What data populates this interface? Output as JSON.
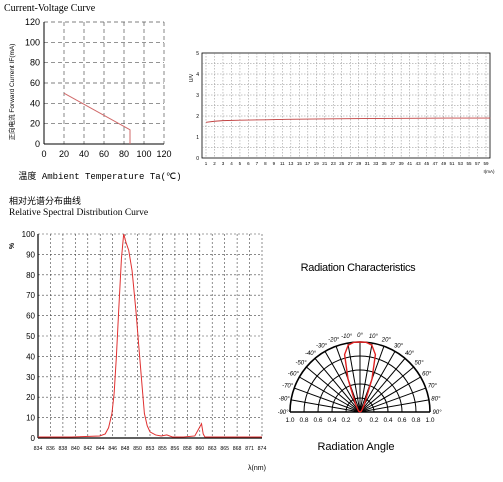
{
  "labels": {
    "cv_title": "Current-Voltage Curve",
    "spectral_cn": "相对光谱分布曲线",
    "spectral_en": "Relative Spectral Distribution Curve"
  },
  "chart_data": [
    {
      "type": "line",
      "ylabel": "正向电流 Forward Current IF(mA)",
      "xlabel": "温度 Ambient Temperature Ta(℃)",
      "xlim": [
        0,
        120
      ],
      "ylim": [
        0,
        120
      ],
      "x_ticks": [
        0,
        20,
        40,
        60,
        80,
        100,
        120
      ],
      "y_ticks": [
        0,
        20,
        40,
        60,
        80,
        100,
        120
      ],
      "grid": true,
      "series": [
        {
          "x": [
            20,
            86,
            86
          ],
          "y": [
            50,
            14,
            0
          ]
        }
      ]
    },
    {
      "type": "line",
      "ylabel": "U/V",
      "xlabel": "I(mA)",
      "xlim": [
        1,
        60
      ],
      "ylim": [
        0,
        5
      ],
      "x_ticks": [
        "1",
        "2",
        "3",
        "4",
        "5",
        "6",
        "7",
        "8",
        "9",
        "11",
        "13",
        "15",
        "17",
        "19",
        "21",
        "23",
        "25",
        "27",
        "29",
        "31",
        "33",
        "35",
        "37",
        "39",
        "41",
        "43",
        "45",
        "47",
        "49",
        "51",
        "53",
        "55",
        "57",
        "59"
      ],
      "y_ticks": [
        0,
        0.5,
        1,
        1.5,
        2,
        2.5,
        3,
        3.5,
        4,
        4.5,
        5
      ],
      "grid": true,
      "series": [
        {
          "x": [
            1,
            2,
            3,
            5,
            8,
            12,
            20,
            30,
            40,
            50,
            60
          ],
          "y": [
            1.7,
            1.75,
            1.78,
            1.8,
            1.82,
            1.84,
            1.86,
            1.88,
            1.89,
            1.9,
            1.9
          ]
        }
      ]
    },
    {
      "type": "line",
      "ylabel": "%",
      "xlabel": "λ(nm)",
      "xlim": [
        834,
        874
      ],
      "ylim": [
        0,
        100
      ],
      "x_ticks": [
        "834",
        "836",
        "838",
        "840",
        "842",
        "844",
        "846",
        "848",
        "850",
        "853",
        "855",
        "856",
        "858",
        "860",
        "863",
        "865",
        "868",
        "871",
        "874"
      ],
      "y_ticks": [
        0,
        10,
        20,
        30,
        40,
        50,
        60,
        70,
        80,
        90,
        100
      ],
      "grid": true,
      "series": [
        {
          "x": [
            834,
            840,
            845,
            846,
            846.6,
            847.2,
            847.6,
            848,
            848.4,
            848.9,
            849.3,
            849.7,
            850.2,
            850.8,
            851.5,
            852,
            852.6,
            853,
            853.5,
            854,
            855,
            856,
            857,
            858,
            860,
            862,
            863.2,
            863.5,
            863.8,
            865,
            870,
            874
          ],
          "y": [
            0.5,
            0.5,
            1,
            2,
            5,
            12,
            22,
            40,
            62,
            88,
            100,
            96,
            92,
            82,
            62,
            45,
            25,
            12,
            6,
            3,
            1.5,
            1,
            1.5,
            0.5,
            0.5,
            1,
            7,
            2,
            0.5,
            0.5,
            0.5,
            0.5
          ]
        }
      ]
    },
    {
      "type": "polar",
      "title": "Radiation Characteristics",
      "xlabel": "Radiation Angle",
      "angle_labels": [
        "-90°",
        "-80°",
        "-70°",
        "-60°",
        "-50°",
        "-40°",
        "-30°",
        "-20°",
        "-10°",
        "0°",
        "10°",
        "20°",
        "30°",
        "40°",
        "50°",
        "60°",
        "70°",
        "80°",
        "90°"
      ],
      "radial_ticks": [
        "1.0",
        "0.8",
        "0.6",
        "0.4",
        "0.2",
        "0",
        "0.2",
        "0.4",
        "0.6",
        "0.8",
        "1.0"
      ],
      "series": [
        {
          "angle_deg": [
            -90,
            -60,
            -40,
            -30,
            -20,
            -15,
            -10,
            -5,
            0,
            5,
            10,
            15,
            20,
            30,
            40,
            60,
            90
          ],
          "value": [
            0,
            0.02,
            0.05,
            0.12,
            0.5,
            0.85,
            0.97,
            1.0,
            1.0,
            1.0,
            0.97,
            0.85,
            0.5,
            0.12,
            0.05,
            0.02,
            0
          ]
        }
      ]
    }
  ]
}
